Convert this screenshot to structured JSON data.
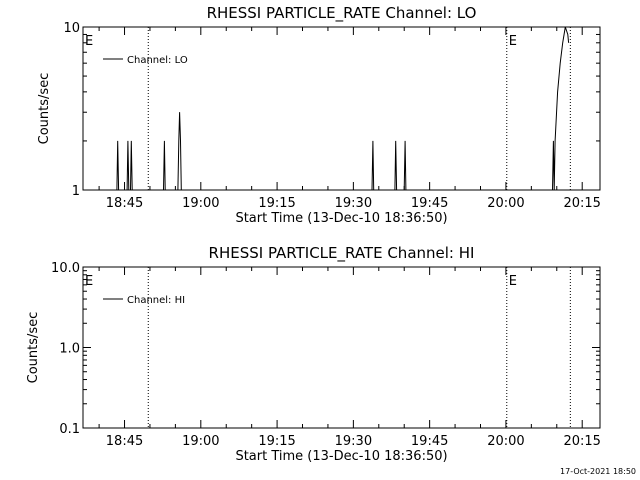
{
  "footer_timestamp": "17-Oct-2021 18:50",
  "chart_data": [
    {
      "type": "line",
      "title": "RHESSI PARTICLE_RATE Channel: LO",
      "xlabel": "Start Time (13-Dec-10 18:36:50)",
      "ylabel": "Counts/sec",
      "yscale": "log",
      "ylim": [
        1,
        10
      ],
      "y_ticks": [
        {
          "value": 1,
          "label": "1"
        },
        {
          "value": 10,
          "label": "10"
        }
      ],
      "xlim": [
        "18:36:50",
        "20:18:30"
      ],
      "x_ticks": [
        "18:45",
        "19:00",
        "19:15",
        "19:30",
        "19:45",
        "20:00",
        "20:15"
      ],
      "legend": {
        "label": "Channel: LO",
        "position": "top-left"
      },
      "markers": [
        {
          "label": "E",
          "time": "18:36:50",
          "line": false
        },
        {
          "label": "",
          "time": "18:49:40",
          "line": true
        },
        {
          "label": "E",
          "time": "20:00:10",
          "line": true
        },
        {
          "label": "",
          "time": "20:12:40",
          "line": true
        }
      ],
      "series": [
        {
          "name": "Channel: LO",
          "points": [
            [
              "18:36:50",
              1
            ],
            [
              "18:43:30",
              1
            ],
            [
              "18:43:40",
              2
            ],
            [
              "18:43:50",
              1
            ],
            [
              "18:45:30",
              1
            ],
            [
              "18:45:40",
              2
            ],
            [
              "18:45:50",
              1
            ],
            [
              "18:46:10",
              1
            ],
            [
              "18:46:20",
              2
            ],
            [
              "18:46:30",
              1
            ],
            [
              "18:52:40",
              1
            ],
            [
              "18:52:50",
              2
            ],
            [
              "18:53:00",
              1
            ],
            [
              "18:55:30",
              1
            ],
            [
              "18:55:40",
              2
            ],
            [
              "18:55:50",
              3
            ],
            [
              "18:56:00",
              2
            ],
            [
              "18:56:10",
              1
            ],
            [
              "19:33:40",
              1
            ],
            [
              "19:33:50",
              2
            ],
            [
              "19:34:00",
              1
            ],
            [
              "19:38:10",
              1
            ],
            [
              "19:38:20",
              2
            ],
            [
              "19:38:30",
              1
            ],
            [
              "19:40:00",
              1
            ],
            [
              "19:40:10",
              2
            ],
            [
              "19:40:20",
              1
            ],
            [
              "20:09:10",
              1
            ],
            [
              "20:09:20",
              2
            ],
            [
              "20:09:30",
              1
            ],
            [
              "20:09:40",
              2
            ],
            [
              "20:10:10",
              4
            ],
            [
              "20:10:40",
              6
            ],
            [
              "20:11:10",
              8
            ],
            [
              "20:11:40",
              10
            ],
            [
              "20:12:10",
              9
            ],
            [
              "20:12:20",
              8
            ]
          ]
        }
      ]
    },
    {
      "type": "line",
      "title": "RHESSI PARTICLE_RATE Channel: HI",
      "xlabel": "Start Time (13-Dec-10 18:36:50)",
      "ylabel": "Counts/sec",
      "yscale": "log",
      "ylim": [
        0.1,
        10
      ],
      "y_ticks": [
        {
          "value": 0.1,
          "label": "0.1"
        },
        {
          "value": 1,
          "label": "1.0"
        },
        {
          "value": 10,
          "label": "10.0"
        }
      ],
      "xlim": [
        "18:36:50",
        "20:18:30"
      ],
      "x_ticks": [
        "18:45",
        "19:00",
        "19:15",
        "19:30",
        "19:45",
        "20:00",
        "20:15"
      ],
      "legend": {
        "label": "Channel: HI",
        "position": "top-left"
      },
      "markers": [
        {
          "label": "E",
          "time": "18:36:50",
          "line": false
        },
        {
          "label": "",
          "time": "18:49:40",
          "line": true
        },
        {
          "label": "E",
          "time": "20:00:10",
          "line": true
        },
        {
          "label": "",
          "time": "20:12:40",
          "line": true
        }
      ],
      "series": [
        {
          "name": "Channel: HI",
          "points": []
        }
      ]
    }
  ]
}
